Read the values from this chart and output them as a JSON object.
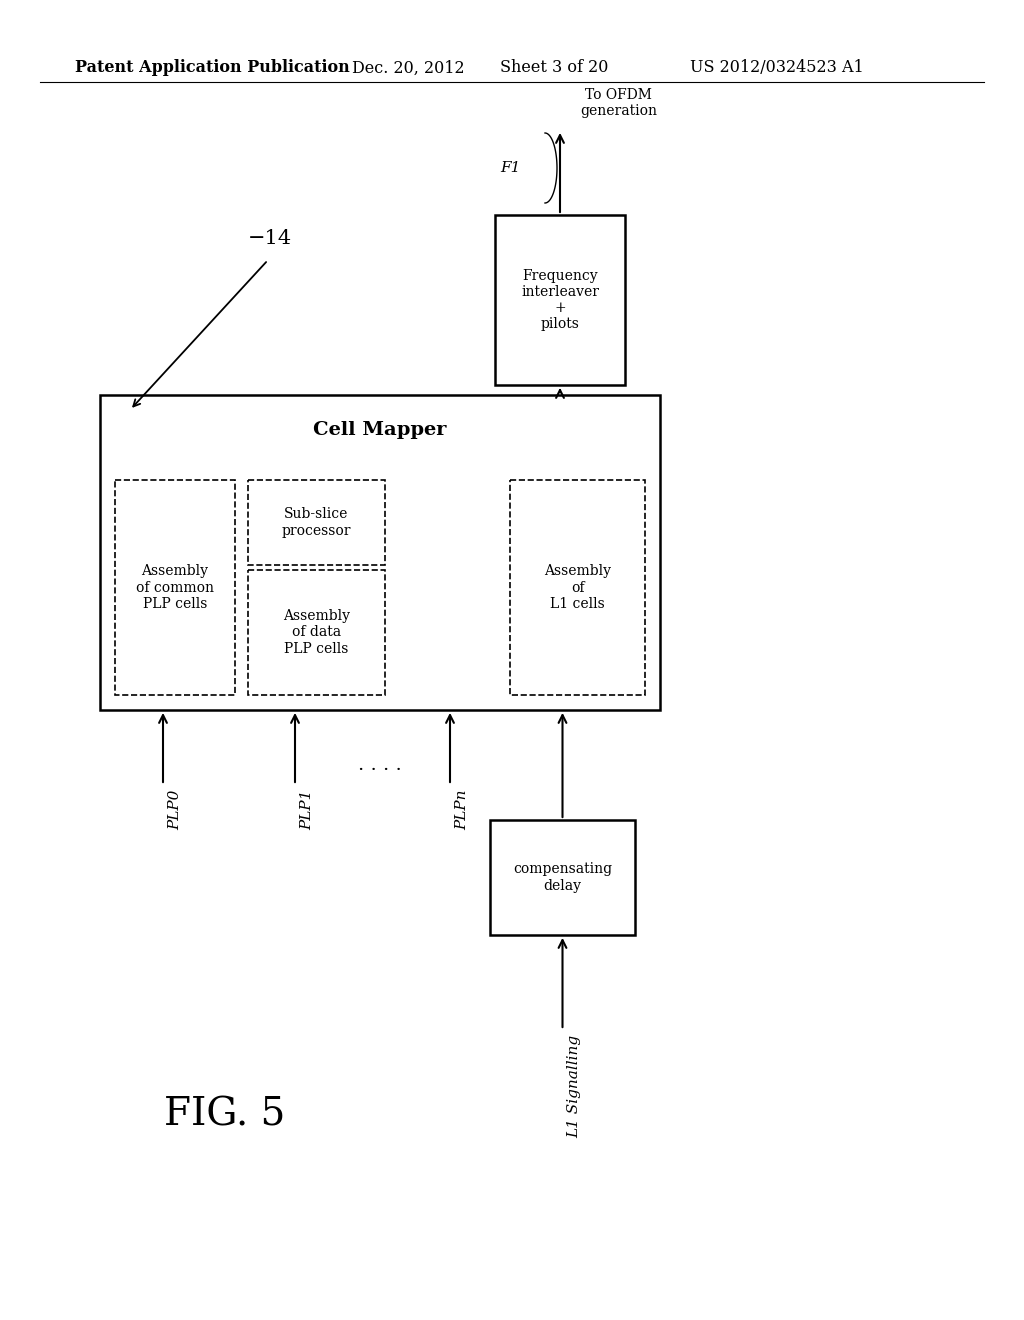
{
  "bg_color": "#ffffff",
  "header_text": "Patent Application Publication",
  "header_date": "Dec. 20, 2012",
  "header_sheet": "Sheet 3 of 20",
  "header_patent": "US 2012/0324523 A1",
  "fig_label": "FIG. 5",
  "diagram_label": "−14",
  "cell_mapper_label": "Cell Mapper",
  "freq_box_label": "Frequency\ninterleaver\n+\npilots",
  "output_label": "To OFDM\ngeneration",
  "f1_label": "F1",
  "comp_delay_label": "compensating\ndelay",
  "l1_signal_label": "L1 Signalling"
}
